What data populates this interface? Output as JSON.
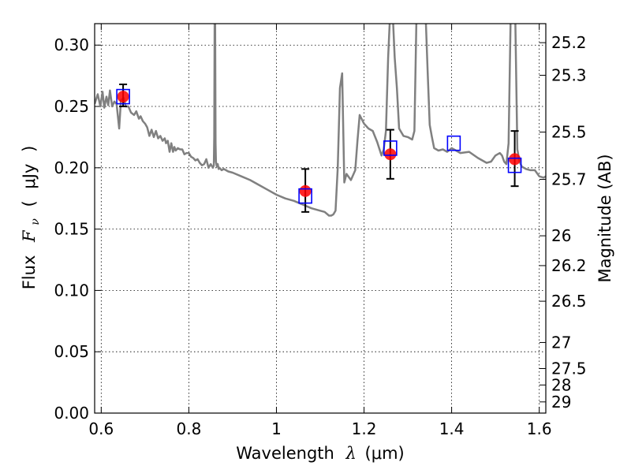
{
  "chart_data": {
    "type": "scatter",
    "xlabel_text": "Wavelength",
    "xlabel_symbol": "λ",
    "xlabel_unit": "(μm)",
    "ylabel_text": "Flux",
    "ylabel_symbol": "F",
    "ylabel_subscript": "ν",
    "ylabel_unit_open": "(",
    "ylabel_unit": "μJy",
    "ylabel_unit_close": ")",
    "y2label": "Magnitude (AB)",
    "xlim": [
      0.585,
      1.615
    ],
    "ylim": [
      0.0,
      0.3175
    ],
    "grid": true,
    "x_ticks": [
      {
        "v": 0.6,
        "label": "0.6"
      },
      {
        "v": 0.8,
        "label": "0.8"
      },
      {
        "v": 1.0,
        "label": "1"
      },
      {
        "v": 1.2,
        "label": "1.2"
      },
      {
        "v": 1.4,
        "label": "1.4"
      },
      {
        "v": 1.6,
        "label": "1.6"
      }
    ],
    "y_ticks": [
      {
        "v": 0.0,
        "label": "0.00"
      },
      {
        "v": 0.05,
        "label": "0.05"
      },
      {
        "v": 0.1,
        "label": "0.10"
      },
      {
        "v": 0.15,
        "label": "0.15"
      },
      {
        "v": 0.2,
        "label": "0.20"
      },
      {
        "v": 0.25,
        "label": "0.25"
      },
      {
        "v": 0.3,
        "label": "0.30"
      }
    ],
    "mag_ticks": [
      {
        "v": 25.2,
        "label": "25.2"
      },
      {
        "v": 25.3,
        "label": "25.3"
      },
      {
        "v": 25.5,
        "label": "25.5"
      },
      {
        "v": 25.7,
        "label": "25.7"
      },
      {
        "v": 26.0,
        "label": "26"
      },
      {
        "v": 26.2,
        "label": "26.2"
      },
      {
        "v": 26.5,
        "label": "26.5"
      },
      {
        "v": 27.0,
        "label": "27"
      },
      {
        "v": 27.5,
        "label": "27.5"
      },
      {
        "v": 28.0,
        "label": "28"
      },
      {
        "v": 29.0,
        "label": "29"
      }
    ],
    "model_spectrum": {
      "color": "#808080",
      "x": [
        0.585,
        0.592,
        0.598,
        0.603,
        0.607,
        0.612,
        0.616,
        0.62,
        0.625,
        0.63,
        0.635,
        0.641,
        0.645,
        0.651,
        0.656,
        0.662,
        0.668,
        0.675,
        0.68,
        0.686,
        0.69,
        0.695,
        0.7,
        0.705,
        0.71,
        0.715,
        0.72,
        0.725,
        0.73,
        0.735,
        0.74,
        0.745,
        0.748,
        0.752,
        0.756,
        0.76,
        0.764,
        0.767,
        0.77,
        0.775,
        0.78,
        0.785,
        0.79,
        0.795,
        0.8,
        0.805,
        0.81,
        0.815,
        0.82,
        0.825,
        0.83,
        0.835,
        0.84,
        0.845,
        0.85,
        0.855,
        0.857,
        0.858,
        0.859,
        0.86,
        0.861,
        0.862,
        0.864,
        0.866,
        0.868,
        0.87,
        0.875,
        0.88,
        0.89,
        0.9,
        0.92,
        0.94,
        0.96,
        0.98,
        1.0,
        1.02,
        1.04,
        1.06,
        1.08,
        1.1,
        1.11,
        1.12,
        1.125,
        1.13,
        1.135,
        1.14,
        1.145,
        1.15,
        1.155,
        1.16,
        1.17,
        1.18,
        1.185,
        1.19,
        1.2,
        1.21,
        1.22,
        1.23,
        1.24,
        1.245,
        1.25,
        1.255,
        1.26,
        1.265,
        1.27,
        1.275,
        1.28,
        1.29,
        1.3,
        1.31,
        1.315,
        1.32,
        1.322,
        1.325,
        1.33,
        1.335,
        1.34,
        1.345,
        1.35,
        1.355,
        1.36,
        1.37,
        1.38,
        1.39,
        1.4,
        1.41,
        1.42,
        1.44,
        1.46,
        1.48,
        1.49,
        1.5,
        1.51,
        1.515,
        1.52,
        1.525,
        1.53,
        1.535,
        1.54,
        1.545,
        1.55,
        1.555,
        1.56,
        1.57,
        1.58,
        1.59,
        1.6,
        1.61,
        1.615
      ],
      "y": [
        0.252,
        0.26,
        0.25,
        0.262,
        0.249,
        0.258,
        0.251,
        0.263,
        0.25,
        0.254,
        0.252,
        0.232,
        0.255,
        0.257,
        0.25,
        0.25,
        0.245,
        0.243,
        0.246,
        0.24,
        0.242,
        0.238,
        0.236,
        0.233,
        0.226,
        0.231,
        0.225,
        0.23,
        0.224,
        0.226,
        0.222,
        0.224,
        0.22,
        0.222,
        0.213,
        0.22,
        0.213,
        0.217,
        0.214,
        0.216,
        0.215,
        0.215,
        0.211,
        0.212,
        0.212,
        0.209,
        0.208,
        0.206,
        0.207,
        0.204,
        0.202,
        0.203,
        0.207,
        0.2,
        0.203,
        0.2,
        0.202,
        0.225,
        0.33,
        0.33,
        0.22,
        0.205,
        0.201,
        0.203,
        0.199,
        0.2,
        0.198,
        0.199,
        0.197,
        0.196,
        0.193,
        0.19,
        0.186,
        0.182,
        0.178,
        0.175,
        0.173,
        0.17,
        0.167,
        0.165,
        0.164,
        0.161,
        0.161,
        0.162,
        0.165,
        0.2,
        0.265,
        0.277,
        0.188,
        0.195,
        0.19,
        0.198,
        0.222,
        0.243,
        0.236,
        0.232,
        0.23,
        0.221,
        0.21,
        0.215,
        0.23,
        0.29,
        0.33,
        0.33,
        0.29,
        0.265,
        0.232,
        0.226,
        0.225,
        0.223,
        0.23,
        0.33,
        0.33,
        0.33,
        0.33,
        0.33,
        0.33,
        0.28,
        0.235,
        0.225,
        0.216,
        0.214,
        0.215,
        0.213,
        0.216,
        0.214,
        0.212,
        0.213,
        0.208,
        0.204,
        0.205,
        0.21,
        0.212,
        0.21,
        0.205,
        0.203,
        0.22,
        0.33,
        0.33,
        0.33,
        0.215,
        0.205,
        0.201,
        0.199,
        0.198,
        0.198,
        0.193,
        0.192,
        0.193
      ]
    },
    "observed": {
      "color": "#ff0000",
      "points": [
        {
          "x": 0.65,
          "y": 0.258,
          "err_low": 0.25,
          "err_high": 0.268
        },
        {
          "x": 1.066,
          "y": 0.181,
          "err_low": 0.164,
          "err_high": 0.199
        },
        {
          "x": 1.26,
          "y": 0.211,
          "err_low": 0.191,
          "err_high": 0.231
        },
        {
          "x": 1.544,
          "y": 0.207,
          "err_low": 0.185,
          "err_high": 0.23
        }
      ]
    },
    "model_points": {
      "color": "#0000ff",
      "points": [
        {
          "x": 0.65,
          "y": 0.258
        },
        {
          "x": 1.066,
          "y": 0.177
        },
        {
          "x": 1.26,
          "y": 0.216
        },
        {
          "x": 1.405,
          "y": 0.22
        },
        {
          "x": 1.544,
          "y": 0.202
        }
      ]
    }
  }
}
